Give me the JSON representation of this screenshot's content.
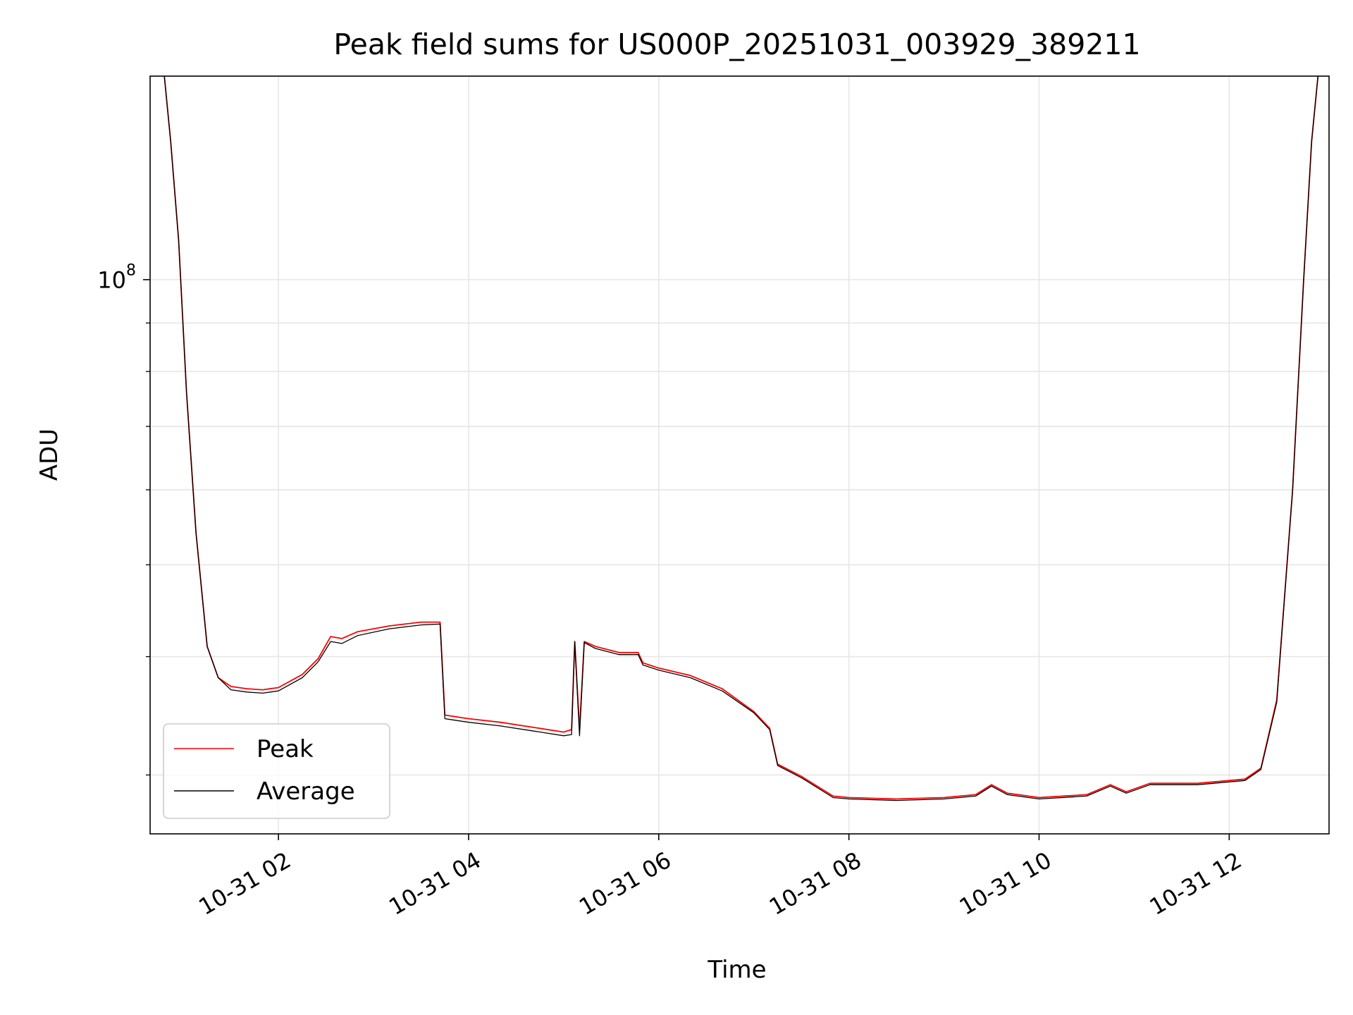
{
  "chart_data": {
    "type": "line",
    "title": "Peak field sums for US000P_20251031_003929_389211",
    "xlabel": "Time",
    "ylabel": "ADU",
    "y_scale": "log",
    "xlim": [
      "10-31 00:39",
      "10-31 13:03"
    ],
    "ylim": [
      26000000,
      164000000
    ],
    "x_ticks": [
      "10-31 02",
      "10-31 04",
      "10-31 06",
      "10-31 08",
      "10-31 10",
      "10-31 12"
    ],
    "y_ticks": [
      {
        "value": 100000000,
        "base": "10",
        "exp": "8"
      }
    ],
    "grid": true,
    "legend_position": "lower-left",
    "series": [
      {
        "name": "Peak",
        "color": "#ff0000",
        "points": [
          [
            "10-31 00:48",
            164000000
          ],
          [
            "10-31 00:52",
            140000000
          ],
          [
            "10-31 00:57",
            110000000
          ],
          [
            "10-31 01:02",
            76000000
          ],
          [
            "10-31 01:08",
            54000000
          ],
          [
            "10-31 01:15",
            41000000
          ],
          [
            "10-31 01:22",
            38000000
          ],
          [
            "10-31 01:30",
            37200000
          ],
          [
            "10-31 01:40",
            37000000
          ],
          [
            "10-31 01:50",
            36900000
          ],
          [
            "10-31 02:00",
            37100000
          ],
          [
            "10-31 02:15",
            38300000
          ],
          [
            "10-31 02:25",
            39800000
          ],
          [
            "10-31 02:33",
            42000000
          ],
          [
            "10-31 02:40",
            41800000
          ],
          [
            "10-31 02:50",
            42500000
          ],
          [
            "10-31 03:10",
            43100000
          ],
          [
            "10-31 03:30",
            43500000
          ],
          [
            "10-31 03:42",
            43500000
          ],
          [
            "10-31 03:45",
            34700000
          ],
          [
            "10-31 04:00",
            34400000
          ],
          [
            "10-31 04:20",
            34100000
          ],
          [
            "10-31 04:40",
            33700000
          ],
          [
            "10-31 05:00",
            33300000
          ],
          [
            "10-31 05:05",
            33500000
          ],
          [
            "10-31 05:07",
            41500000
          ],
          [
            "10-31 05:10",
            33500000
          ],
          [
            "10-31 05:13",
            41500000
          ],
          [
            "10-31 05:20",
            41000000
          ],
          [
            "10-31 05:35",
            40400000
          ],
          [
            "10-31 05:47",
            40400000
          ],
          [
            "10-31 05:50",
            39400000
          ],
          [
            "10-31 06:00",
            38900000
          ],
          [
            "10-31 06:20",
            38200000
          ],
          [
            "10-31 06:40",
            37000000
          ],
          [
            "10-31 07:00",
            35000000
          ],
          [
            "10-31 07:10",
            33600000
          ],
          [
            "10-31 07:15",
            30800000
          ],
          [
            "10-31 07:30",
            29900000
          ],
          [
            "10-31 07:50",
            28500000
          ],
          [
            "10-31 08:00",
            28400000
          ],
          [
            "10-31 08:30",
            28300000
          ],
          [
            "10-31 09:00",
            28400000
          ],
          [
            "10-31 09:20",
            28600000
          ],
          [
            "10-31 09:30",
            29300000
          ],
          [
            "10-31 09:40",
            28700000
          ],
          [
            "10-31 10:00",
            28400000
          ],
          [
            "10-31 10:30",
            28600000
          ],
          [
            "10-31 10:45",
            29300000
          ],
          [
            "10-31 10:55",
            28800000
          ],
          [
            "10-31 11:10",
            29400000
          ],
          [
            "10-31 11:40",
            29400000
          ],
          [
            "10-31 12:10",
            29700000
          ],
          [
            "10-31 12:20",
            30500000
          ],
          [
            "10-31 12:30",
            36000000
          ],
          [
            "10-31 12:40",
            60000000
          ],
          [
            "10-31 12:47",
            100000000
          ],
          [
            "10-31 12:52",
            140000000
          ],
          [
            "10-31 12:56",
            164000000
          ]
        ]
      },
      {
        "name": "Average",
        "color": "#000000",
        "points": [
          [
            "10-31 00:48",
            164000000
          ],
          [
            "10-31 00:52",
            140000000
          ],
          [
            "10-31 00:57",
            110000000
          ],
          [
            "10-31 01:02",
            76000000
          ],
          [
            "10-31 01:08",
            54000000
          ],
          [
            "10-31 01:15",
            41000000
          ],
          [
            "10-31 01:22",
            38000000
          ],
          [
            "10-31 01:30",
            36900000
          ],
          [
            "10-31 01:40",
            36700000
          ],
          [
            "10-31 01:50",
            36600000
          ],
          [
            "10-31 02:00",
            36800000
          ],
          [
            "10-31 02:15",
            38000000
          ],
          [
            "10-31 02:25",
            39500000
          ],
          [
            "10-31 02:33",
            41500000
          ],
          [
            "10-31 02:40",
            41300000
          ],
          [
            "10-31 02:50",
            42100000
          ],
          [
            "10-31 03:10",
            42800000
          ],
          [
            "10-31 03:30",
            43200000
          ],
          [
            "10-31 03:42",
            43300000
          ],
          [
            "10-31 03:45",
            34400000
          ],
          [
            "10-31 04:00",
            34100000
          ],
          [
            "10-31 04:20",
            33800000
          ],
          [
            "10-31 04:40",
            33400000
          ],
          [
            "10-31 05:00",
            33000000
          ],
          [
            "10-31 05:05",
            33100000
          ],
          [
            "10-31 05:07",
            41500000
          ],
          [
            "10-31 05:10",
            33000000
          ],
          [
            "10-31 05:13",
            41400000
          ],
          [
            "10-31 05:20",
            40800000
          ],
          [
            "10-31 05:35",
            40200000
          ],
          [
            "10-31 05:47",
            40200000
          ],
          [
            "10-31 05:50",
            39200000
          ],
          [
            "10-31 06:00",
            38700000
          ],
          [
            "10-31 06:20",
            38000000
          ],
          [
            "10-31 06:40",
            36800000
          ],
          [
            "10-31 07:00",
            34900000
          ],
          [
            "10-31 07:10",
            33500000
          ],
          [
            "10-31 07:15",
            30700000
          ],
          [
            "10-31 07:30",
            29800000
          ],
          [
            "10-31 07:50",
            28400000
          ],
          [
            "10-31 08:00",
            28300000
          ],
          [
            "10-31 08:30",
            28200000
          ],
          [
            "10-31 09:00",
            28300000
          ],
          [
            "10-31 09:20",
            28500000
          ],
          [
            "10-31 09:30",
            29200000
          ],
          [
            "10-31 09:40",
            28600000
          ],
          [
            "10-31 10:00",
            28300000
          ],
          [
            "10-31 10:30",
            28500000
          ],
          [
            "10-31 10:45",
            29200000
          ],
          [
            "10-31 10:55",
            28700000
          ],
          [
            "10-31 11:10",
            29300000
          ],
          [
            "10-31 11:40",
            29300000
          ],
          [
            "10-31 12:10",
            29600000
          ],
          [
            "10-31 12:20",
            30400000
          ],
          [
            "10-31 12:30",
            35800000
          ],
          [
            "10-31 12:40",
            60000000
          ],
          [
            "10-31 12:47",
            100000000
          ],
          [
            "10-31 12:52",
            140000000
          ],
          [
            "10-31 12:56",
            164000000
          ]
        ]
      }
    ]
  }
}
